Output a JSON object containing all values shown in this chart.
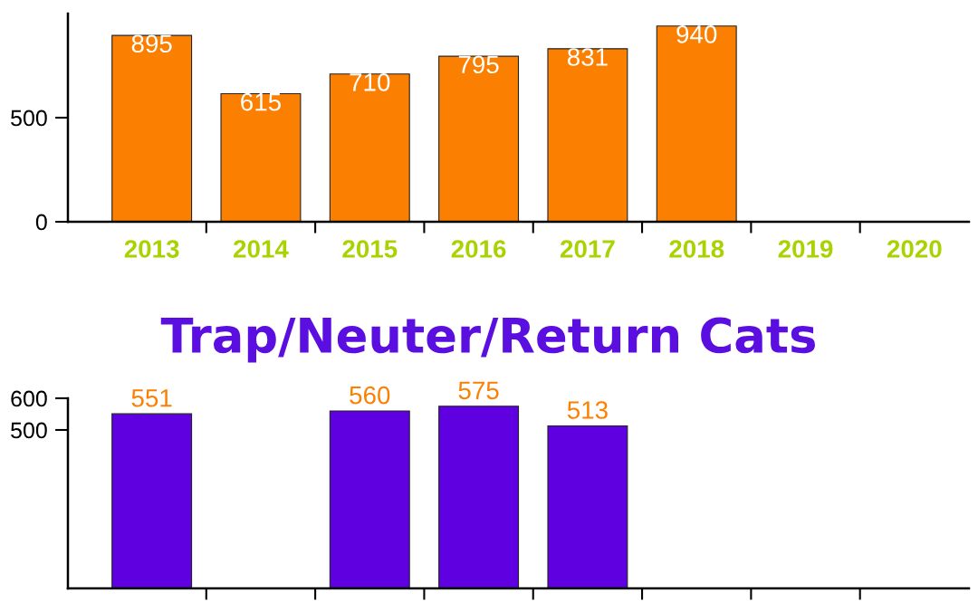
{
  "chart_data": [
    {
      "type": "bar",
      "categories": [
        "2013",
        "2014",
        "2015",
        "2016",
        "2017",
        "2018",
        "2019",
        "2020"
      ],
      "values": [
        895,
        615,
        710,
        795,
        831,
        940,
        null,
        null
      ],
      "color": "#fb7f00",
      "ylim": [
        0,
        1000
      ],
      "yticks": [
        0,
        500
      ],
      "data_labels": true,
      "grid": false,
      "legend": false
    },
    {
      "type": "bar",
      "title": "Trap/Neuter/Return Cats",
      "categories": [
        null,
        null,
        null,
        null,
        null,
        null,
        null,
        null
      ],
      "values": [
        551,
        null,
        560,
        575,
        513,
        null,
        null,
        null
      ],
      "color": "#5e00e0",
      "ylim": [
        0,
        600
      ],
      "yticks": [
        500,
        600
      ],
      "data_labels": true,
      "tick_labels": "y",
      "grid": false,
      "legend": false
    }
  ]
}
